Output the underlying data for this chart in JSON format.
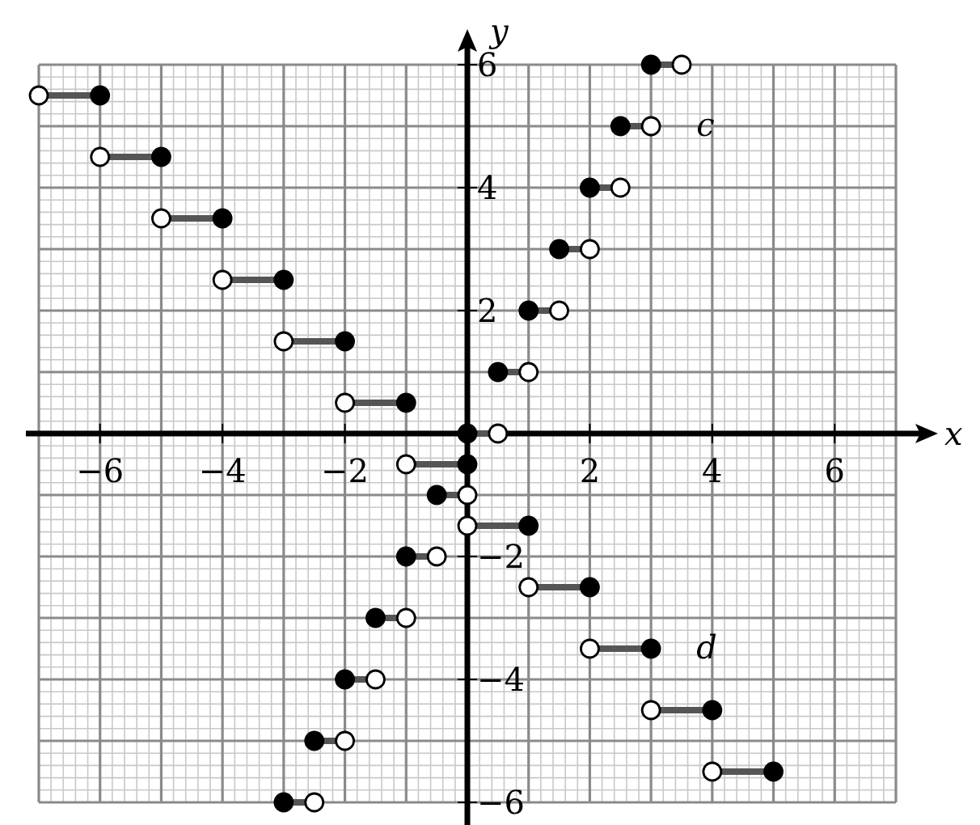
{
  "chart_data": {
    "type": "line",
    "xlabel": "x",
    "ylabel": "y",
    "xlim": [
      -7,
      7
    ],
    "ylim": [
      -6,
      6
    ],
    "xticks": [
      {
        "value": -6,
        "label": "−6"
      },
      {
        "value": -4,
        "label": "−4"
      },
      {
        "value": -2,
        "label": "−2"
      },
      2,
      4,
      6
    ],
    "yticks": [
      {
        "value": -6,
        "label": "−6"
      },
      {
        "value": -4,
        "label": "−4"
      },
      {
        "value": -2,
        "label": "−2"
      },
      2,
      4,
      6
    ],
    "grid": true,
    "series": [
      {
        "color": "#555555",
        "x": [
          -3,
          -2.5,
          null,
          -2.5,
          -2,
          null,
          -2,
          -1.5,
          null,
          -1.5,
          -1,
          null,
          -1,
          -0.5,
          null,
          -0.5,
          0,
          null,
          0,
          0.5,
          null,
          0.5,
          1,
          null,
          1,
          1.5,
          null,
          1.5,
          2,
          null,
          2,
          2.5,
          null,
          2.5,
          3,
          null,
          3,
          3.5
        ],
        "values": [
          -6,
          -6,
          null,
          -5,
          -5,
          null,
          -4,
          -4,
          null,
          -3,
          -3,
          null,
          -2,
          -2,
          null,
          -1,
          -1,
          null,
          0,
          0,
          null,
          1,
          1,
          null,
          2,
          2,
          null,
          3,
          3,
          null,
          4,
          4,
          null,
          5,
          5,
          null,
          6,
          6
        ]
      },
      {
        "color": "#555555",
        "x": [
          -7,
          -6,
          null,
          -6,
          -5,
          null,
          -5,
          -4,
          null,
          -4,
          -3,
          null,
          -3,
          -2,
          null,
          -2,
          -1,
          null,
          -1,
          0,
          null,
          0,
          1,
          null,
          1,
          2,
          null,
          2,
          3,
          null,
          3,
          4,
          null,
          4,
          5
        ],
        "values": [
          5.5,
          5.5,
          null,
          4.5,
          4.5,
          null,
          3.5,
          3.5,
          null,
          2.5,
          2.5,
          null,
          1.5,
          1.5,
          null,
          0.5,
          0.5,
          null,
          -0.5,
          -0.5,
          null,
          -1.5,
          -1.5,
          null,
          -2.5,
          -2.5,
          null,
          -3.5,
          -3.5,
          null,
          -4.5,
          -4.5,
          null,
          -5.5,
          -5.5
        ]
      },
      {
        "type": "scatter",
        "marker": "circle",
        "color": "#000000",
        "x": [
          -3,
          -2.5,
          -2,
          -1.5,
          -1,
          -0.5,
          0,
          0.5,
          1,
          1.5,
          2,
          2.5,
          3
        ],
        "values": [
          -6,
          -5,
          -4,
          -3,
          -2,
          -1,
          0,
          1,
          2,
          3,
          4,
          5,
          6
        ]
      },
      {
        "type": "scatter",
        "marker": "circle",
        "color": "#ffffff",
        "x": [
          -2.5,
          -2,
          -1.5,
          -1,
          -0.5,
          0,
          0.5,
          1,
          1.5,
          2,
          2.5,
          3,
          3.5
        ],
        "values": [
          -6,
          -5,
          -4,
          -3,
          -2,
          -1,
          0,
          1,
          2,
          3,
          4,
          5,
          6
        ]
      },
      {
        "type": "scatter",
        "marker": "circle",
        "color": "#000000",
        "x": [
          -6,
          -5,
          -4,
          -3,
          -2,
          -1,
          0,
          1,
          2,
          3,
          4,
          5
        ],
        "values": [
          5.5,
          4.5,
          3.5,
          2.5,
          1.5,
          0.5,
          -0.5,
          -1.5,
          -2.5,
          -3.5,
          -4.5,
          -5.5
        ]
      },
      {
        "type": "scatter",
        "marker": "circle",
        "color": "#ffffff",
        "x": [
          -7,
          -6,
          -5,
          -4,
          -3,
          -2,
          -1,
          0,
          1,
          2,
          3,
          4
        ],
        "values": [
          5.5,
          4.5,
          3.5,
          2.5,
          1.5,
          0.5,
          -0.5,
          -1.5,
          -2.5,
          -3.5,
          -4.5,
          -5.5
        ]
      }
    ],
    "annotations": [
      {
        "text": "c",
        "x": 3,
        "y": 5
      },
      {
        "text": "d",
        "x": 3,
        "y": -3.5
      }
    ]
  }
}
